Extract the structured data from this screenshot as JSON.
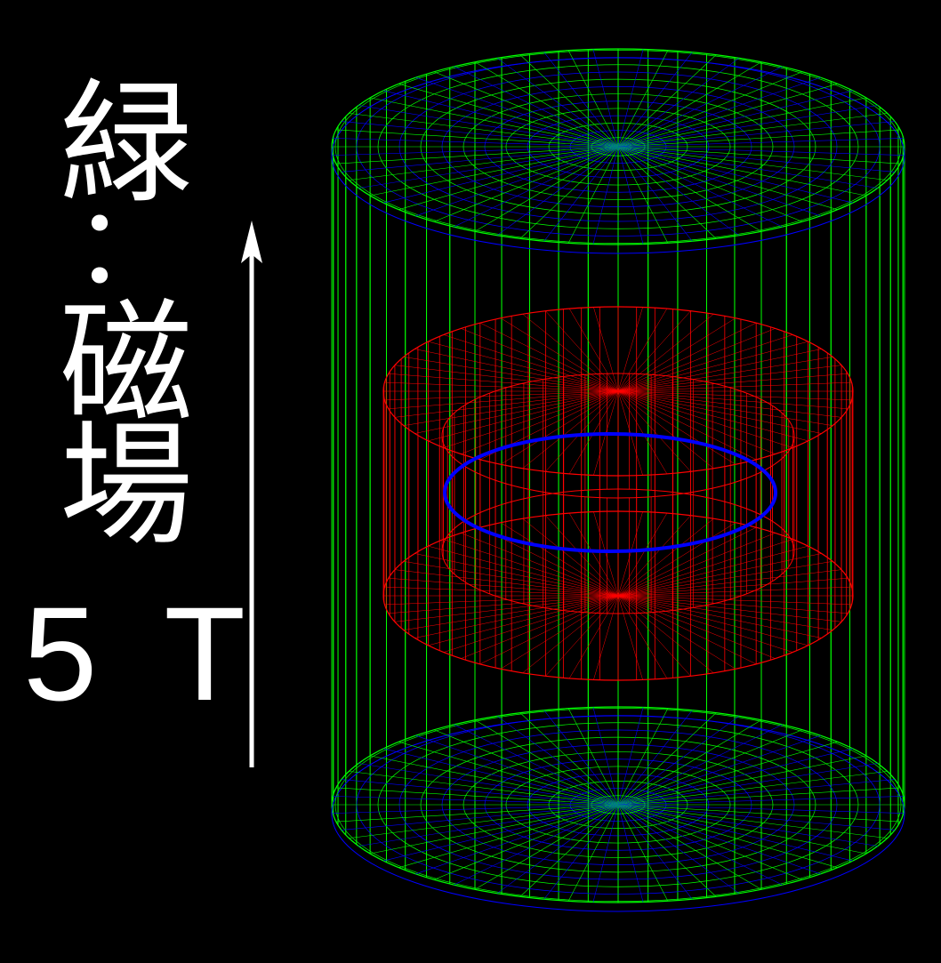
{
  "label": {
    "characters": [
      "緑",
      "：",
      "磁",
      "場"
    ],
    "field_strength": "5 T"
  },
  "colors": {
    "background": "#000000",
    "text": "#ffffff",
    "arrow": "#ffffff",
    "outer_wireframe": "#00ff00",
    "endcap_inner": "#0000ff",
    "inner_detector": "#ff0000",
    "ring": "#0000ff"
  },
  "icons": {
    "field_direction": "up-arrow-icon"
  }
}
